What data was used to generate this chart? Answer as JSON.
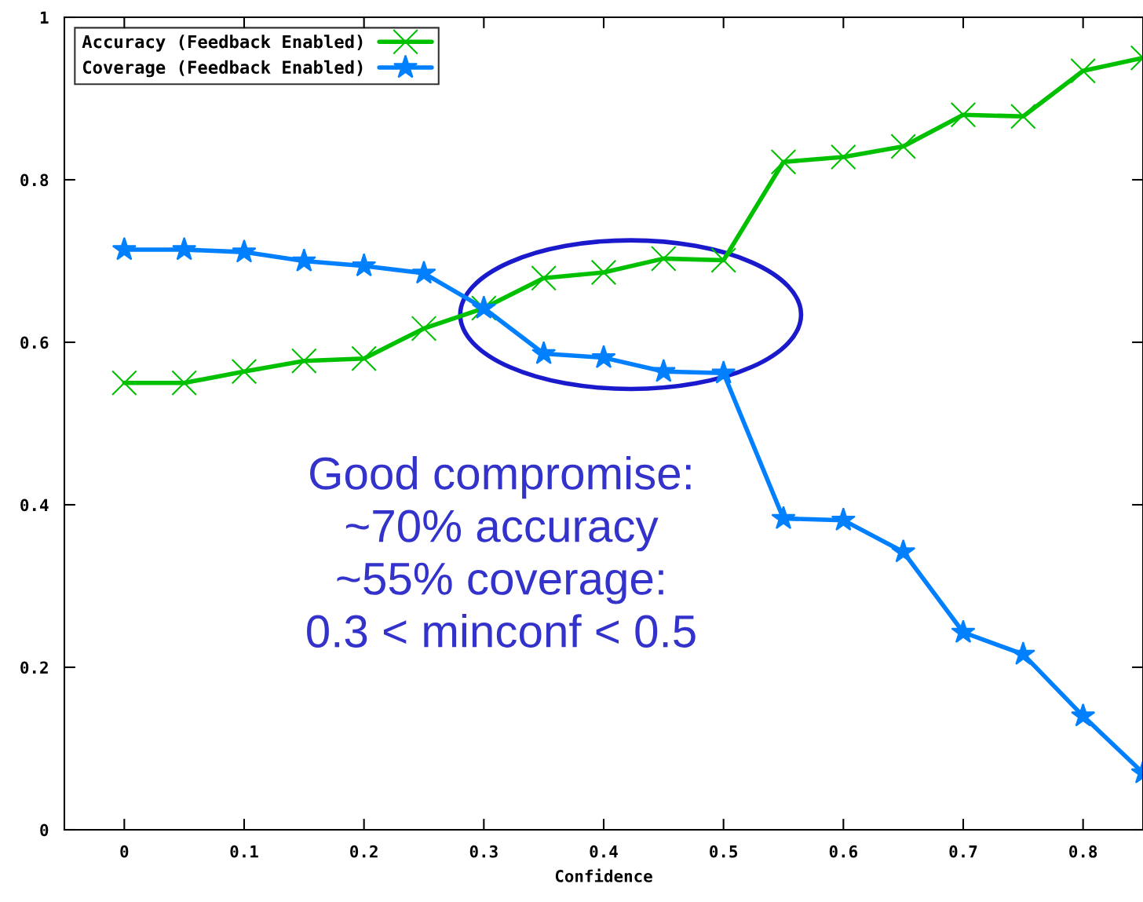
{
  "chart_data": {
    "type": "line",
    "xlabel": "Confidence",
    "x": [
      0,
      0.05,
      0.1,
      0.15,
      0.2,
      0.25,
      0.3,
      0.35,
      0.4,
      0.45,
      0.5,
      0.55,
      0.6,
      0.65,
      0.7,
      0.75,
      0.8,
      0.85
    ],
    "series": [
      {
        "name": "Accuracy (Feedback Enabled)",
        "color": "#00c000",
        "marker": "cross",
        "values": [
          0.55,
          0.55,
          0.564,
          0.577,
          0.58,
          0.617,
          0.642,
          0.679,
          0.686,
          0.703,
          0.701,
          0.822,
          0.828,
          0.841,
          0.88,
          0.878,
          0.934,
          0.95
        ]
      },
      {
        "name": "Coverage (Feedback Enabled)",
        "color": "#0080ff",
        "marker": "star",
        "values": [
          0.714,
          0.714,
          0.711,
          0.7,
          0.694,
          0.685,
          0.642,
          0.586,
          0.581,
          0.564,
          0.562,
          0.383,
          0.381,
          0.342,
          0.243,
          0.216,
          0.14,
          0.07
        ]
      }
    ],
    "xlim": [
      -0.05,
      0.85
    ],
    "ylim": [
      0,
      1
    ],
    "xticks": [
      0,
      0.1,
      0.2,
      0.3,
      0.4,
      0.5,
      0.6,
      0.7,
      0.8
    ],
    "yticks": [
      0,
      0.2,
      0.4,
      0.6,
      0.8,
      1
    ],
    "grid": false,
    "legend": "top left",
    "line_style": "solid",
    "annotations": [
      "Good compromise:\n~70% accuracy\n~55% coverage:\n0.3 < minconf < 0.5"
    ]
  }
}
